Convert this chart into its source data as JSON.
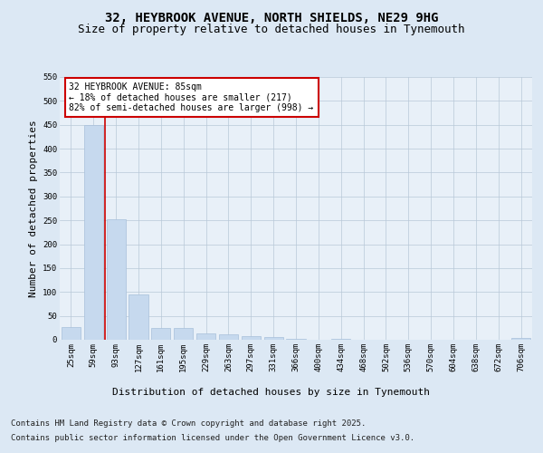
{
  "title_line1": "32, HEYBROOK AVENUE, NORTH SHIELDS, NE29 9HG",
  "title_line2": "Size of property relative to detached houses in Tynemouth",
  "xlabel": "Distribution of detached houses by size in Tynemouth",
  "ylabel": "Number of detached properties",
  "bar_color": "#c6d9ee",
  "bar_edge_color": "#a8c0da",
  "grid_color": "#b8c8d8",
  "background_color": "#dce8f4",
  "plot_bg_color": "#e8f0f8",
  "vline_color": "#cc0000",
  "annotation_box_edgecolor": "#cc0000",
  "categories": [
    "25sqm",
    "59sqm",
    "93sqm",
    "127sqm",
    "161sqm",
    "195sqm",
    "229sqm",
    "263sqm",
    "297sqm",
    "331sqm",
    "366sqm",
    "400sqm",
    "434sqm",
    "468sqm",
    "502sqm",
    "536sqm",
    "570sqm",
    "604sqm",
    "638sqm",
    "672sqm",
    "706sqm"
  ],
  "values": [
    27,
    450,
    252,
    95,
    25,
    24,
    13,
    11,
    8,
    5,
    2,
    0,
    1,
    0,
    0,
    0,
    0,
    0,
    0,
    0,
    3
  ],
  "vline_bin": 1,
  "annotation_text": "32 HEYBROOK AVENUE: 85sqm\n← 18% of detached houses are smaller (217)\n82% of semi-detached houses are larger (998) →",
  "ylim": [
    0,
    550
  ],
  "yticks": [
    0,
    50,
    100,
    150,
    200,
    250,
    300,
    350,
    400,
    450,
    500,
    550
  ],
  "footer_line1": "Contains HM Land Registry data © Crown copyright and database right 2025.",
  "footer_line2": "Contains public sector information licensed under the Open Government Licence v3.0.",
  "title_fontsize": 10,
  "subtitle_fontsize": 9,
  "axis_label_fontsize": 8,
  "tick_fontsize": 6.5,
  "annotation_fontsize": 7,
  "footer_fontsize": 6.5
}
